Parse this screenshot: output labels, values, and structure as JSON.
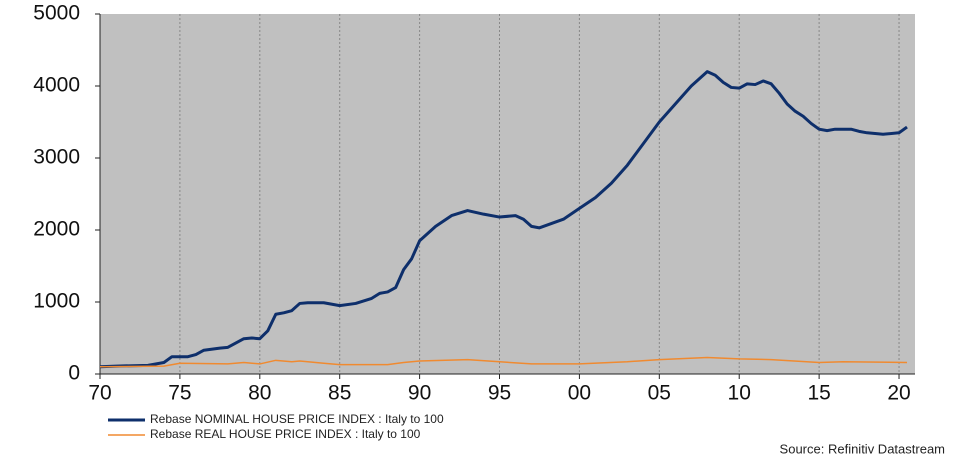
{
  "chart_data": {
    "type": "line",
    "xlim": [
      1970,
      2021
    ],
    "ylim": [
      0,
      5000
    ],
    "xticks": [
      {
        "value": 1970,
        "label": "70"
      },
      {
        "value": 1975,
        "label": "75"
      },
      {
        "value": 1980,
        "label": "80"
      },
      {
        "value": 1985,
        "label": "85"
      },
      {
        "value": 1990,
        "label": "90"
      },
      {
        "value": 1995,
        "label": "95"
      },
      {
        "value": 2000,
        "label": "00"
      },
      {
        "value": 2005,
        "label": "05"
      },
      {
        "value": 2010,
        "label": "10"
      },
      {
        "value": 2015,
        "label": "15"
      },
      {
        "value": 2020,
        "label": "20"
      }
    ],
    "yticks": [
      0,
      1000,
      2000,
      3000,
      4000,
      5000
    ],
    "grid": true,
    "series": [
      {
        "name": "Rebase NOMINAL HOUSE PRICE INDEX : Italy to 100",
        "color": "#0e2f6b",
        "x": [
          1970,
          1971,
          1973,
          1974,
          1974.5,
          1975.5,
          1976,
          1976.5,
          1977.5,
          1978,
          1979,
          1979.5,
          1980,
          1980.5,
          1981,
          1981.5,
          1982,
          1982.5,
          1983,
          1984,
          1985,
          1986,
          1987,
          1987.5,
          1988,
          1988.5,
          1989,
          1989.5,
          1990,
          1991,
          1992,
          1993,
          1994,
          1995,
          1996,
          1996.5,
          1997,
          1997.5,
          1998,
          1999,
          2000,
          2001,
          2002,
          2003,
          2004,
          2005,
          2006,
          2007,
          2008,
          2008.5,
          2009,
          2009.5,
          2010,
          2010.5,
          2011,
          2011.5,
          2012,
          2012.5,
          2013,
          2013.5,
          2014,
          2014.5,
          2015,
          2015.5,
          2016,
          2017,
          2017.5,
          2018,
          2019,
          2020,
          2020.5
        ],
        "values": [
          100,
          110,
          120,
          160,
          240,
          240,
          270,
          330,
          360,
          370,
          490,
          500,
          490,
          600,
          830,
          850,
          880,
          980,
          990,
          990,
          950,
          980,
          1050,
          1120,
          1140,
          1200,
          1450,
          1600,
          1850,
          2050,
          2200,
          2270,
          2220,
          2180,
          2200,
          2150,
          2050,
          2030,
          2070,
          2150,
          2300,
          2450,
          2650,
          2900,
          3200,
          3500,
          3750,
          4000,
          4200,
          4150,
          4050,
          3980,
          3970,
          4030,
          4020,
          4070,
          4030,
          3900,
          3750,
          3650,
          3580,
          3480,
          3400,
          3380,
          3400,
          3400,
          3370,
          3350,
          3330,
          3350,
          3430
        ]
      },
      {
        "name": "Rebase REAL HOUSE PRICE INDEX : Italy to 100",
        "color": "#f08a30",
        "x": [
          1970,
          1974,
          1975,
          1978,
          1979,
          1980,
          1981,
          1982,
          1982.5,
          1984,
          1985,
          1988,
          1989,
          1990,
          1993,
          1995,
          1997,
          2000,
          2003,
          2005,
          2008,
          2010,
          2012,
          2015,
          2016.5,
          2020.5
        ],
        "values": [
          100,
          110,
          150,
          140,
          160,
          140,
          190,
          170,
          180,
          150,
          130,
          130,
          160,
          180,
          200,
          170,
          140,
          140,
          170,
          200,
          230,
          210,
          200,
          160,
          170,
          160
        ]
      }
    ],
    "source": "Source: Refinitiv Datastream"
  }
}
